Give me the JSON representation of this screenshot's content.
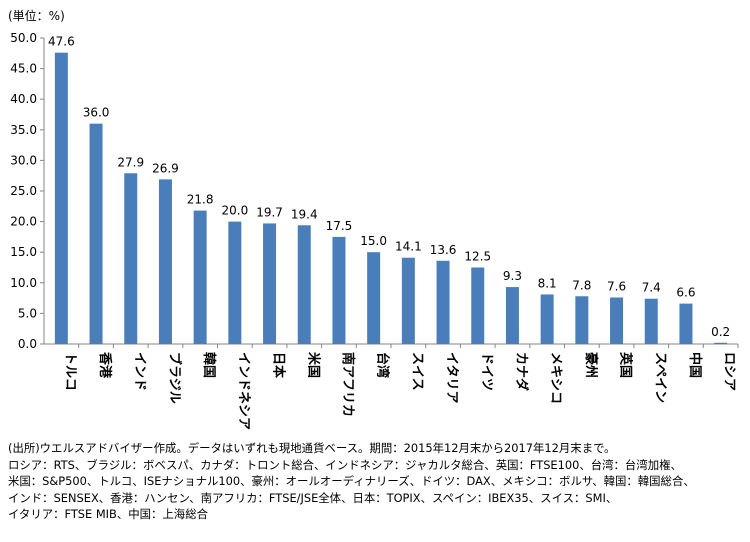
{
  "chart_data": {
    "type": "bar",
    "unit_label": "(単位：%)",
    "categories": [
      "トルコ",
      "香港",
      "インド",
      "ブラジル",
      "韓国",
      "インドネシア",
      "日本",
      "米国",
      "南アフリカ",
      "台湾",
      "スイス",
      "イタリア",
      "ドイツ",
      "カナダ",
      "メキシコ",
      "豪州",
      "英国",
      "スペイン",
      "中国",
      "ロシア"
    ],
    "values": [
      47.6,
      36.0,
      27.9,
      26.9,
      21.8,
      20.0,
      19.7,
      19.4,
      17.5,
      15.0,
      14.1,
      13.6,
      12.5,
      9.3,
      8.1,
      7.8,
      7.6,
      7.4,
      6.6,
      0.2
    ],
    "value_labels": [
      "47.6",
      "36.0",
      "27.9",
      "26.9",
      "21.8",
      "20.0",
      "19.7",
      "19.4",
      "17.5",
      "15.0",
      "14.1",
      "13.6",
      "12.5",
      "9.3",
      "8.1",
      "7.8",
      "7.6",
      "7.4",
      "6.6",
      "0.2"
    ],
    "y_ticks": [
      "0.0",
      "5.0",
      "10.0",
      "15.0",
      "20.0",
      "25.0",
      "30.0",
      "35.0",
      "40.0",
      "45.0",
      "50.0"
    ],
    "ylim": [
      0,
      50
    ],
    "bar_color": "#4a7ebb",
    "grid": false,
    "title": "",
    "xlabel": "",
    "ylabel": ""
  },
  "notes": [
    "(出所)ウエルスアドバイザー作成。データはいずれも現地通貨ベース。期間：2015年12月末から2017年12月末まで。",
    "ロシア：RTS、ブラジル：ボベスパ、カナダ：トロント総合、インドネシア：ジャカルタ総合、英国：FTSE100、台湾：台湾加権、",
    "米国：S&P500、トルコ、ISEナショナル100、豪州：オールオーディナリーズ、ドイツ：DAX、メキシコ：ボルサ、韓国：韓国総合、",
    "インド：SENSEX、香港：ハンセン、南アフリカ：FTSE/JSE全体、日本：TOPIX、スペイン：IBEX35、スイス：SMI、",
    "イタリア：FTSE MIB、中国：上海総合"
  ]
}
